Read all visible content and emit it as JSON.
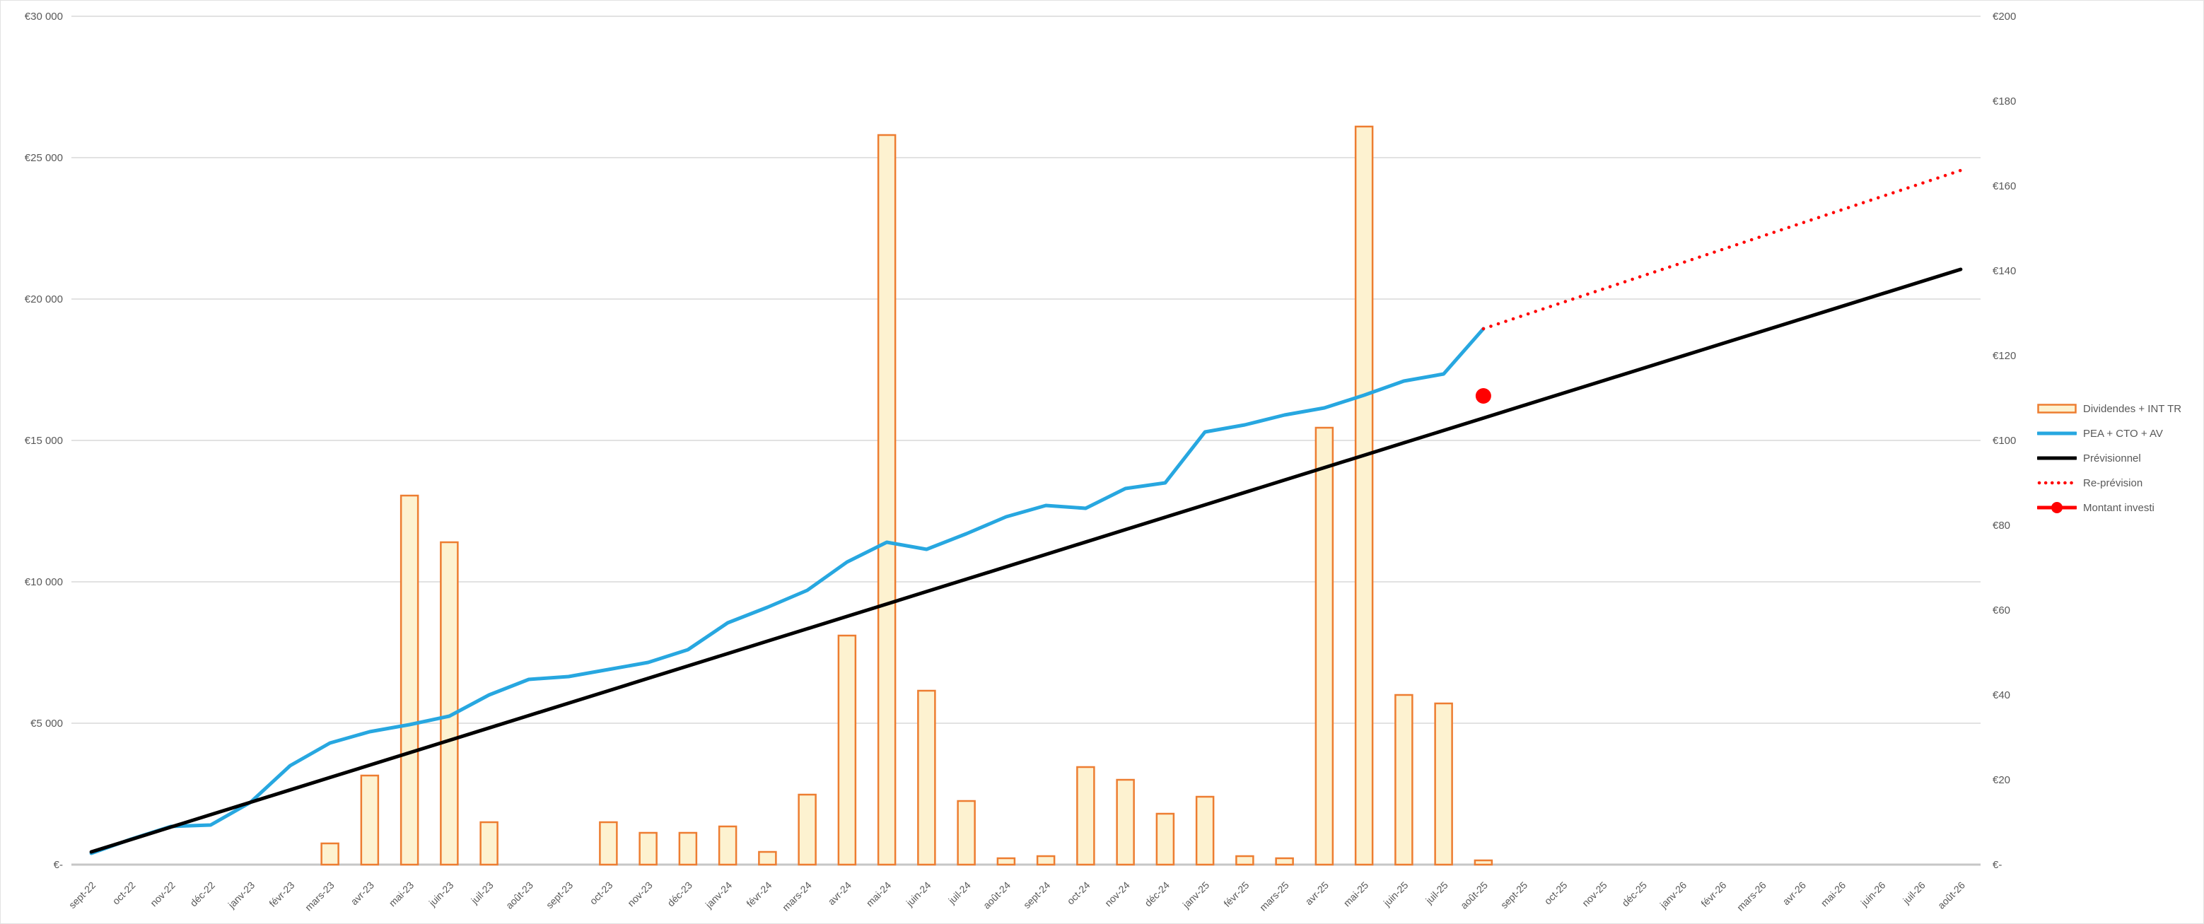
{
  "chart_data": {
    "type": "combo",
    "title": "",
    "categories": [
      "sept-22",
      "oct-22",
      "nov-22",
      "déc-22",
      "janv-23",
      "févr-23",
      "mars-23",
      "avr-23",
      "mai-23",
      "juin-23",
      "juil-23",
      "août-23",
      "sept-23",
      "oct-23",
      "nov-23",
      "déc-23",
      "janv-24",
      "févr-24",
      "mars-24",
      "avr-24",
      "mai-24",
      "juin-24",
      "juil-24",
      "août-24",
      "sept-24",
      "oct-24",
      "nov-24",
      "déc-24",
      "janv-25",
      "févr-25",
      "mars-25",
      "avr-25",
      "mai-25",
      "juin-25",
      "juil-25",
      "août-25",
      "sept-25",
      "oct-25",
      "nov-25",
      "déc-25",
      "janv-26",
      "févr-26",
      "mars-26",
      "avr-26",
      "mai-26",
      "juin-26",
      "juil-26",
      "août-26"
    ],
    "left_axis": {
      "min": 0,
      "max": 30000,
      "step": 5000,
      "tick_labels": [
        "€30 000",
        "€25 000",
        "€20 000",
        "€15 000",
        "€10 000",
        "€5 000",
        "€-"
      ]
    },
    "right_axis": {
      "min": 0,
      "max": 200,
      "step": 20,
      "tick_labels": [
        "€200",
        "€180",
        "€160",
        "€140",
        "€120",
        "€100",
        "€80",
        "€60",
        "€40",
        "€20",
        "€-"
      ]
    },
    "grid": "horizontal-only",
    "legend_position": "right",
    "series": [
      {
        "name": "Dividendes + INT TR",
        "type": "bar",
        "axis": "right",
        "values": [
          0,
          0,
          0,
          0,
          0,
          0,
          5,
          21,
          87,
          76,
          10,
          0,
          0,
          10,
          7.5,
          7.5,
          9,
          3,
          16.5,
          54,
          172,
          41,
          15,
          1.5,
          2,
          23,
          20,
          12,
          16,
          2,
          1.5,
          103,
          174,
          40,
          38,
          1,
          0,
          0,
          0,
          0,
          0,
          0,
          0,
          0,
          0,
          0,
          0,
          0
        ]
      },
      {
        "name": "PEA + CTO + AV",
        "type": "line",
        "axis": "left",
        "values": [
          400,
          900,
          1350,
          1400,
          2200,
          3500,
          4300,
          4700,
          4950,
          5250,
          6000,
          6550,
          6650,
          6900,
          7150,
          7600,
          8550,
          9100,
          9700,
          10700,
          11400,
          11150,
          11700,
          12300,
          12700,
          12600,
          13300,
          13500,
          15300,
          15550,
          15900,
          16150,
          16600,
          17100,
          17350,
          18950,
          null,
          null,
          null,
          null,
          null,
          null,
          null,
          null,
          null,
          null,
          null,
          null
        ]
      },
      {
        "name": "Prévisionnel",
        "type": "line",
        "axis": "left",
        "values": [
          450,
          888,
          1327,
          1765,
          2203,
          2642,
          3080,
          3518,
          3957,
          4395,
          4833,
          5272,
          5710,
          6148,
          6587,
          7025,
          7463,
          7902,
          8340,
          8778,
          9216,
          9655,
          10093,
          10531,
          10970,
          11408,
          11846,
          12285,
          12723,
          13161,
          13600,
          14038,
          14476,
          14915,
          15353,
          15791,
          16230,
          16668,
          17106,
          17544,
          17983,
          18421,
          18859,
          19298,
          19736,
          20174,
          20613,
          21051
        ]
      },
      {
        "name": "Re-prévision",
        "type": "line-dotted",
        "axis": "left",
        "values": [
          null,
          null,
          null,
          null,
          null,
          null,
          null,
          null,
          null,
          null,
          null,
          null,
          null,
          null,
          null,
          null,
          null,
          null,
          null,
          null,
          null,
          null,
          null,
          null,
          null,
          null,
          null,
          null,
          null,
          null,
          null,
          null,
          null,
          null,
          null,
          18950,
          19417,
          19883,
          20350,
          20817,
          21283,
          21750,
          22217,
          22683,
          23150,
          23617,
          24083,
          24550
        ]
      },
      {
        "name": "Montant investi",
        "type": "point",
        "axis": "left",
        "values": [
          null,
          null,
          null,
          null,
          null,
          null,
          null,
          null,
          null,
          null,
          null,
          null,
          null,
          null,
          null,
          null,
          null,
          null,
          null,
          null,
          null,
          null,
          null,
          null,
          null,
          null,
          null,
          null,
          null,
          null,
          null,
          null,
          null,
          null,
          null,
          16575,
          null,
          null,
          null,
          null,
          null,
          null,
          null,
          null,
          null,
          null,
          null,
          null
        ]
      }
    ]
  },
  "legend": {
    "items": [
      {
        "label": "Dividendes + INT TR",
        "swatch": "bar"
      },
      {
        "label": "PEA + CTO + AV",
        "swatch": "line-blue"
      },
      {
        "label": "Prévisionnel",
        "swatch": "line-black"
      },
      {
        "label": "Re-prévision",
        "swatch": "dotted-red"
      },
      {
        "label": "Montant investi",
        "swatch": "marker-red"
      }
    ]
  },
  "colors": {
    "bar_fill": "#FDF2D0",
    "bar_border": "#ED7D31",
    "line_blue": "#27A7E0",
    "line_black": "#000000",
    "red": "#FF0000",
    "gridline": "#D9D9D9",
    "axis_line": "#C6C6C6",
    "tick_text": "#595959"
  }
}
